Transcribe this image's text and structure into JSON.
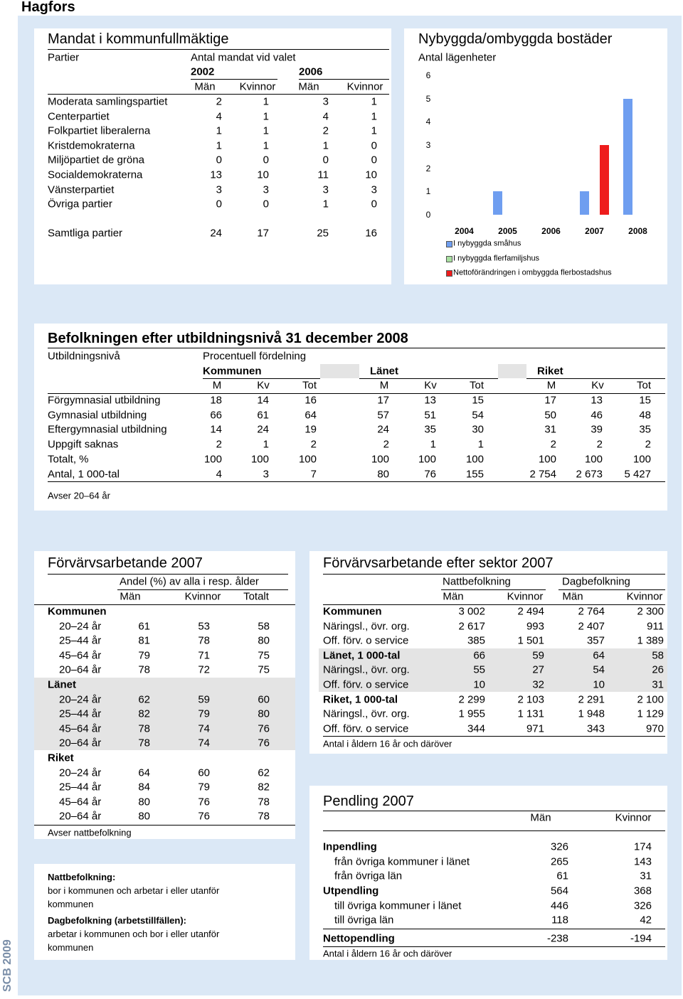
{
  "header": {
    "title": "Hagfors"
  },
  "mandat": {
    "title": "Mandat i kommunfullmäktige",
    "header_rows": [
      [
        "Partier",
        "Antal mandat vid valet"
      ],
      [
        "2002",
        "2006"
      ],
      [
        "Män",
        "Kvinnor",
        "Män",
        "Kvinnor"
      ]
    ],
    "rows": [
      [
        "Moderata samlingspartiet",
        2,
        1,
        3,
        1
      ],
      [
        "Centerpartiet",
        4,
        1,
        4,
        1
      ],
      [
        "Folkpartiet liberalerna",
        1,
        1,
        2,
        1
      ],
      [
        "Kristdemokraterna",
        1,
        1,
        1,
        0
      ],
      [
        "Miljöpartiet de gröna",
        0,
        0,
        0,
        0
      ],
      [
        "Socialdemokraterna",
        13,
        10,
        11,
        10
      ],
      [
        "Vänsterpartiet",
        3,
        3,
        3,
        3
      ],
      [
        "Övriga partier",
        0,
        0,
        1,
        0
      ]
    ],
    "total": [
      "Samtliga partier",
      24,
      17,
      25,
      16
    ]
  },
  "chart_data": {
    "type": "bar",
    "title": "Nybyggda/ombyggda bostäder",
    "y_label": "Antal lägenheter",
    "categories": [
      "2004",
      "2005",
      "2006",
      "2007",
      "2008"
    ],
    "series": [
      {
        "name": "I nybyggda småhus",
        "color": "#6f9ef0",
        "values": [
          0,
          1,
          0,
          1,
          5
        ]
      },
      {
        "name": "I nybyggda flerfamiljshus",
        "color": "#a8e0a0",
        "values": [
          0,
          0,
          0,
          0,
          0
        ]
      },
      {
        "name": "Nettoförändringen i ombyggda flerbostadshus",
        "color": "#ee1c1c",
        "values": [
          0,
          0,
          0,
          3,
          0
        ]
      }
    ],
    "ylim": [
      0,
      6
    ],
    "yticks": [
      0,
      1,
      2,
      3,
      4,
      5,
      6
    ],
    "grid": false
  },
  "utbildning": {
    "title": "Befolkningen efter utbildningsnivå 31 december 2008",
    "header_rows": [
      [
        "Utbildningsnivå",
        "Procentuell fördelning"
      ],
      [
        "Kommunen",
        "Länet",
        "Riket"
      ],
      [
        "M",
        "Kv",
        "Tot",
        "M",
        "Kv",
        "Tot",
        "M",
        "Kv",
        "Tot"
      ]
    ],
    "rows": [
      [
        "Förgymnasial utbildning",
        18,
        14,
        16,
        17,
        13,
        15,
        17,
        13,
        15
      ],
      [
        "Gymnasial utbildning",
        66,
        61,
        64,
        57,
        51,
        54,
        50,
        46,
        48
      ],
      [
        "Eftergymnasial utbildning",
        14,
        24,
        19,
        24,
        35,
        30,
        31,
        39,
        35
      ],
      [
        "Uppgift saknas",
        2,
        1,
        2,
        2,
        1,
        1,
        2,
        2,
        2
      ],
      [
        "Totalt, %",
        100,
        100,
        100,
        100,
        100,
        100,
        100,
        100,
        100
      ],
      [
        "Antal, 1 000-tal",
        4,
        3,
        7,
        80,
        76,
        155,
        "2 754",
        "2 673",
        "5 427"
      ]
    ],
    "note": "Avser 20–64 år"
  },
  "forvarv": {
    "title": "Förvärvsarbetande 2007",
    "header_rows": [
      [
        "Andel (%) av alla i resp. ålder"
      ],
      [
        "Män",
        "Kvinnor",
        "Totalt"
      ]
    ],
    "groups": [
      {
        "name": "Kommunen",
        "rows": [
          [
            "20–24 år",
            61,
            53,
            58
          ],
          [
            "25–44 år",
            81,
            78,
            80
          ],
          [
            "45–64 år",
            79,
            71,
            75
          ],
          [
            "20–64 år",
            78,
            72,
            75
          ]
        ]
      },
      {
        "name": "Länet",
        "rows": [
          [
            "20–24 år",
            62,
            59,
            60
          ],
          [
            "25–44 år",
            82,
            79,
            80
          ],
          [
            "45–64 år",
            78,
            74,
            76
          ],
          [
            "20–64 år",
            78,
            74,
            76
          ]
        ]
      },
      {
        "name": "Riket",
        "rows": [
          [
            "20–24 år",
            64,
            60,
            62
          ],
          [
            "25–44 år",
            84,
            79,
            82
          ],
          [
            "45–64 år",
            80,
            76,
            78
          ],
          [
            "20–64 år",
            80,
            76,
            78
          ]
        ]
      }
    ],
    "note": "Avser nattbefolkning"
  },
  "definitions": [
    {
      "term": "Nattbefolkning:",
      "text": "bor i kommunen och arbetar i eller utanför kommunen"
    },
    {
      "term": "Dagbefolkning (arbetstillfällen):",
      "text": "arbetar i kommunen och bor i eller utanför kommunen"
    }
  ],
  "sektor": {
    "title": "Förvärvsarbetande efter sektor 2007",
    "header_rows": [
      [
        "Nattbefolkning",
        "Dagbefolkning"
      ],
      [
        "Män",
        "Kvinnor",
        "Män",
        "Kvinnor"
      ]
    ],
    "rows": [
      [
        "Kommunen",
        "3 002",
        "2 494",
        "2 764",
        "2 300"
      ],
      [
        "Näringsl., övr. org.",
        "2 617",
        993,
        "2 407",
        911
      ],
      [
        "Off. förv. o service",
        385,
        "1 501",
        357,
        "1 389"
      ],
      [
        "Länet, 1 000-tal",
        66,
        59,
        64,
        58
      ],
      [
        "Näringsl., övr. org.",
        55,
        27,
        54,
        26
      ],
      [
        "Off. förv. o service",
        10,
        32,
        10,
        31
      ],
      [
        "Riket, 1 000-tal",
        "2 299",
        "2 103",
        "2 291",
        "2 100"
      ],
      [
        "Näringsl., övr. org.",
        "1 955",
        "1 131",
        "1 948",
        "1 129"
      ],
      [
        "Off. förv. o service",
        344,
        971,
        343,
        970
      ]
    ],
    "note": "Antal i åldern 16 år och däröver"
  },
  "pendling": {
    "title": "Pendling 2007",
    "header": [
      "Män",
      "Kvinnor"
    ],
    "rows": [
      [
        "Inpendling",
        326,
        174
      ],
      [
        "från övriga kommuner i länet",
        265,
        143
      ],
      [
        "från övriga län",
        61,
        31
      ],
      [
        "Utpendling",
        564,
        368
      ],
      [
        "till övriga kommuner i länet",
        446,
        326
      ],
      [
        "till övriga län",
        118,
        42
      ],
      [
        "Nettopendling",
        -238,
        -194
      ]
    ],
    "note": "Antal i åldern 16 år och däröver"
  },
  "footer": {
    "source": "SCB 2009"
  }
}
